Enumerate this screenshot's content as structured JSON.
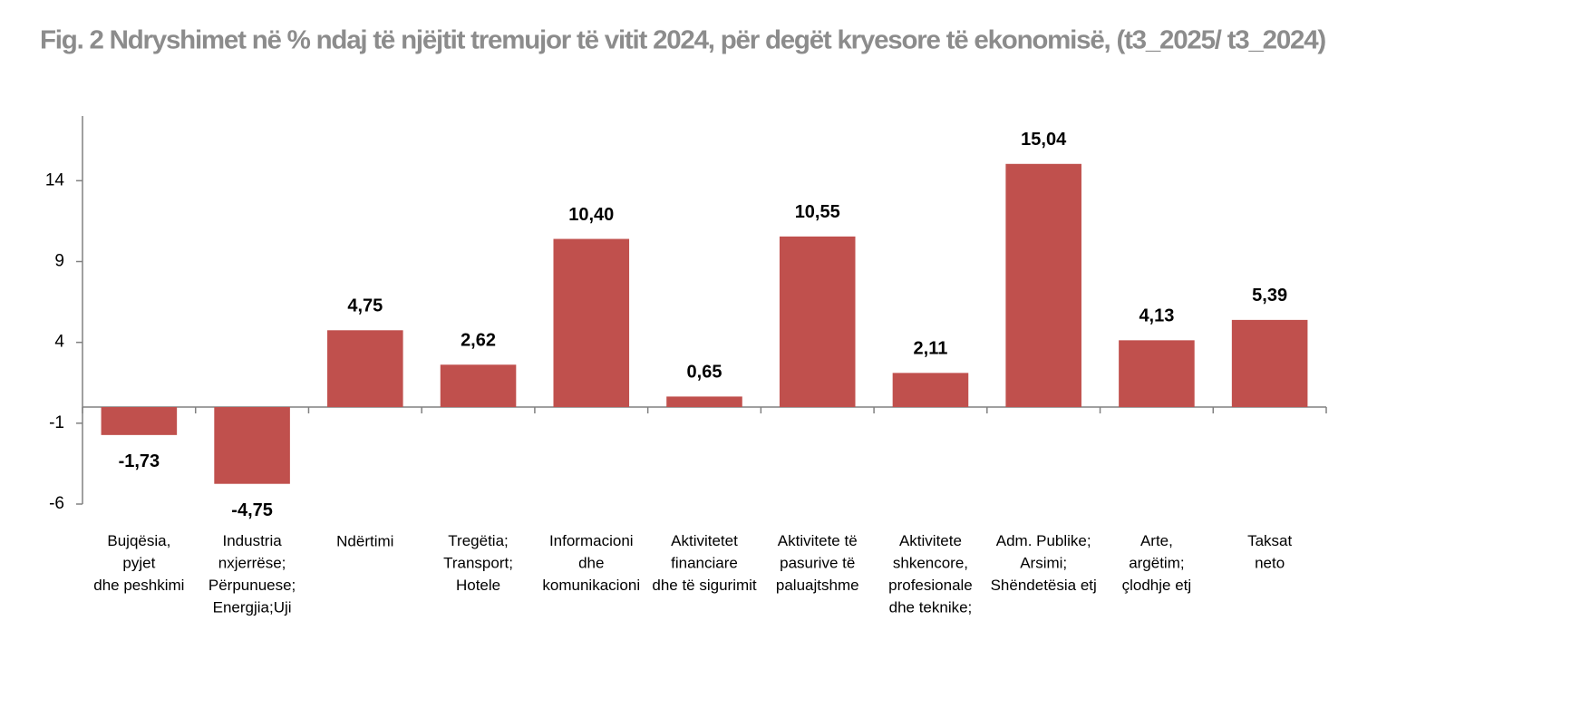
{
  "chart_data": {
    "type": "bar",
    "title": "Fig. 2  Ndryshimet në % ndaj të njëjtit tremujor të vitit 2024, për degët kryesore të ekonomisë, (t3_2025/ t3_2024)",
    "categories": [
      "Bujqësia,\npyjet\ndhe peshkimi",
      "Industria\nnxjerrëse;\nPërpunuese;\nEnergjia;Uji",
      "Ndërtimi",
      "Tregëtia;\nTransport;\nHotele",
      "Informacioni\ndhe\nkomunikacioni",
      "Aktivitetet\nfinanciare\ndhe të sigurimit",
      "Aktivitete të\npasurive të\npaluajtshme",
      "Aktivitete\nshkencore,\nprofesionale\ndhe teknike;",
      "Adm. Publike;\nArsimi;\nShëndetësia etj",
      "Arte,\nargëtim;\nçlodhje etj",
      "Taksat\nneto"
    ],
    "values": [
      -1.73,
      -4.75,
      4.75,
      2.62,
      10.4,
      0.65,
      10.55,
      2.11,
      15.04,
      4.13,
      5.39
    ],
    "value_labels": [
      "-1,73",
      "-4,75",
      "4,75",
      "2,62",
      "10,40",
      "0,65",
      "10,55",
      "2,11",
      "15,04",
      "4,13",
      "5,39"
    ],
    "color": "#c0504d",
    "ylim": [
      -6,
      18
    ],
    "yticks": [
      -6,
      -1,
      4,
      9,
      14
    ]
  }
}
